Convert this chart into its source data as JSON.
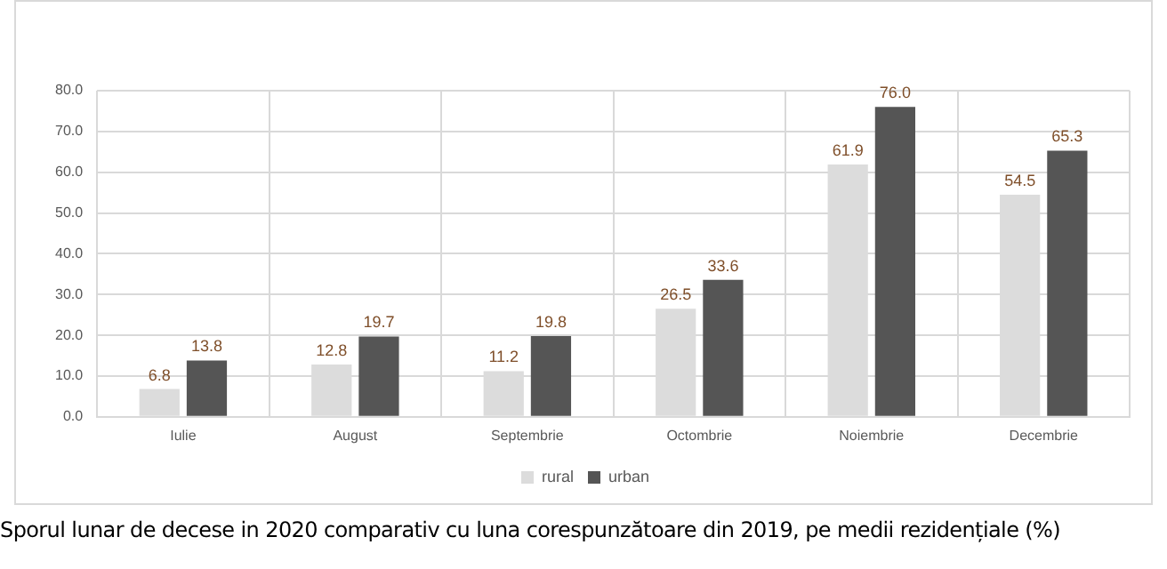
{
  "chart_data": {
    "type": "bar",
    "categories": [
      "Iulie",
      "August",
      "Septembrie",
      "Octombrie",
      "Noiembrie",
      "Decembrie"
    ],
    "series": [
      {
        "name": "rural",
        "color": "#dcdcdc",
        "values": [
          6.8,
          12.8,
          11.2,
          26.5,
          61.9,
          54.5
        ],
        "value_labels": [
          "6.8",
          "12.8",
          "11.2",
          "26.5",
          "61.9",
          "54.5"
        ]
      },
      {
        "name": "urban",
        "color": "#555555",
        "values": [
          13.8,
          19.7,
          19.8,
          33.6,
          76.0,
          65.3
        ],
        "value_labels": [
          "13.8",
          "19.7",
          "19.8",
          "33.6",
          "76.0",
          "65.3"
        ]
      }
    ],
    "ylim": [
      0,
      80
    ],
    "yticks": [
      {
        "value": 0,
        "label": "0.0"
      },
      {
        "value": 10,
        "label": "10.0"
      },
      {
        "value": 20,
        "label": "20.0"
      },
      {
        "value": 30,
        "label": "30.0"
      },
      {
        "value": 40,
        "label": "40.0"
      },
      {
        "value": 50,
        "label": "50.0"
      },
      {
        "value": 60,
        "label": "60.0"
      },
      {
        "value": 70,
        "label": "70.0"
      },
      {
        "value": 80,
        "label": "80.0"
      }
    ],
    "grid": true,
    "legend": "bottom",
    "annotations": [
      "Sporul lunar de decese in 2020 comparativ  cu luna corespunzătoare din 2019, pe medii rezidențiale (%)"
    ]
  }
}
